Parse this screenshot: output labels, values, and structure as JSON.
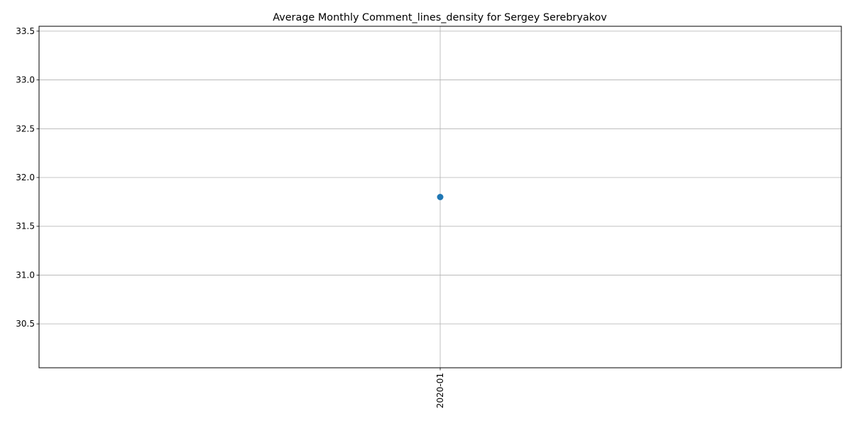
{
  "chart_data": {
    "type": "line",
    "title": "Average Monthly Comment_lines_density for Sergey Serebryakov",
    "xlabel": "",
    "ylabel": "",
    "categories": [
      "2020-01"
    ],
    "series": [
      {
        "values": [
          31.8
        ],
        "color": "#1f77b4",
        "marker": "circle"
      }
    ],
    "ylim": [
      30.05,
      33.55
    ],
    "yticks": [
      30.5,
      31.0,
      31.5,
      32.0,
      32.5,
      33.0,
      33.5
    ],
    "ytick_labels": [
      "30.5",
      "31.0",
      "31.5",
      "32.0",
      "32.5",
      "33.0",
      "33.5"
    ],
    "x_tick_rotation": "vertical",
    "grid": true,
    "legend": "none"
  }
}
